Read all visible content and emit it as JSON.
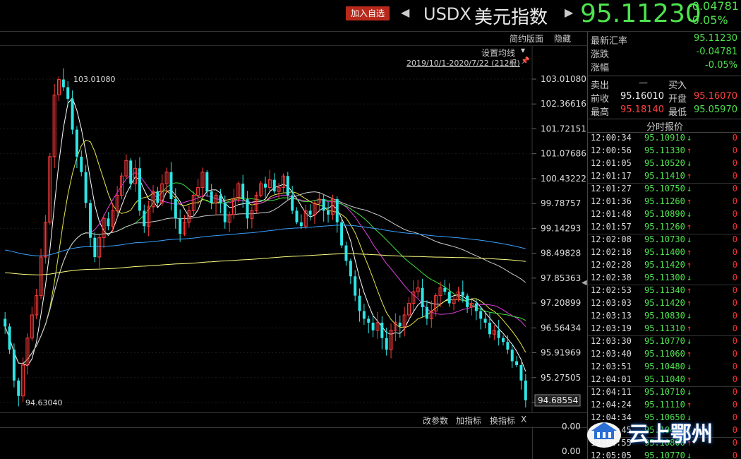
{
  "header": {
    "add_button": "加入自选",
    "symbol": "USDX",
    "name": "美元指数",
    "price": "95.11230",
    "change": "-0.04781",
    "change_pct": "-0.05%"
  },
  "chart_toolbar": {
    "contract_page": "简约版面",
    "hide": "隐藏",
    "ma_settings": "设置均线",
    "date_range": "2019/10/1-2020/7/22 (212根)"
  },
  "sub_toolbar": {
    "change_params": "改参数",
    "add_indicator": "加指标",
    "switch_indicator": "换指标",
    "close": "X"
  },
  "sub_axis": {
    "upper": "0.00",
    "lower": "0.00"
  },
  "quote": {
    "latest_label": "最新汇率",
    "latest": "95.11230",
    "change_label": "涨跌",
    "change": "-0.04781",
    "pct_label": "涨幅",
    "pct": "-0.05%",
    "sell_label": "卖出",
    "sell": "—",
    "buy_label": "买入",
    "buy": "—",
    "prev_label": "前收",
    "prev": "95.16010",
    "open_label": "开盘",
    "open": "95.16070",
    "high_label": "最高",
    "high": "95.18140",
    "low_label": "最低",
    "low": "95.05970",
    "ticks_title": "分时报价"
  },
  "ticks": [
    {
      "time": "12:00:34",
      "price": "95.10910",
      "dir": "down",
      "vol": "0"
    },
    {
      "time": "12:00:56",
      "price": "95.11330",
      "dir": "up",
      "vol": "0"
    },
    {
      "time": "12:01:05",
      "price": "95.10520",
      "dir": "down",
      "vol": "0"
    },
    {
      "time": "12:01:17",
      "price": "95.11410",
      "dir": "up",
      "vol": "0"
    },
    {
      "time": "12:01:27",
      "price": "95.10750",
      "dir": "down",
      "vol": "0"
    },
    {
      "time": "12:01:36",
      "price": "95.11260",
      "dir": "up",
      "vol": "0"
    },
    {
      "time": "12:01:48",
      "price": "95.10890",
      "dir": "down",
      "vol": "0"
    },
    {
      "time": "12:01:57",
      "price": "95.11260",
      "dir": "up",
      "vol": "0"
    },
    {
      "time": "12:02:08",
      "price": "95.10730",
      "dir": "down",
      "vol": "0"
    },
    {
      "time": "12:02:18",
      "price": "95.11400",
      "dir": "up",
      "vol": "0"
    },
    {
      "time": "12:02:28",
      "price": "95.11420",
      "dir": "up",
      "vol": "0"
    },
    {
      "time": "12:02:38",
      "price": "95.11300",
      "dir": "down",
      "vol": "0"
    },
    {
      "time": "12:02:53",
      "price": "95.11340",
      "dir": "up",
      "vol": "0"
    },
    {
      "time": "12:03:03",
      "price": "95.11420",
      "dir": "up",
      "vol": "0"
    },
    {
      "time": "12:03:13",
      "price": "95.10830",
      "dir": "down",
      "vol": "0"
    },
    {
      "time": "12:03:19",
      "price": "95.11310",
      "dir": "up",
      "vol": "0"
    },
    {
      "time": "12:03:30",
      "price": "95.10770",
      "dir": "down",
      "vol": "0"
    },
    {
      "time": "12:03:40",
      "price": "95.11060",
      "dir": "up",
      "vol": "0"
    },
    {
      "time": "12:03:51",
      "price": "95.10480",
      "dir": "down",
      "vol": "0"
    },
    {
      "time": "12:04:01",
      "price": "95.11040",
      "dir": "up",
      "vol": "0"
    },
    {
      "time": "12:04:11",
      "price": "95.10710",
      "dir": "down",
      "vol": "0"
    },
    {
      "time": "12:04:24",
      "price": "95.11110",
      "dir": "up",
      "vol": "0"
    },
    {
      "time": "12:04:34",
      "price": "95.10650",
      "dir": "down",
      "vol": "0"
    },
    {
      "time": "12:04:45",
      "price": "95.10490",
      "dir": "down",
      "vol": "0"
    },
    {
      "time": "12:04:55",
      "price": "95.10800",
      "dir": "up",
      "vol": "0"
    },
    {
      "time": "12:05:05",
      "price": "95.10770",
      "dir": "down",
      "vol": "0"
    }
  ],
  "colors": {
    "up": "#ff3b3b",
    "down": "#2ee6e6",
    "price_green": "#4fe34f",
    "accent_red": "#b8291c"
  },
  "watermark": "云上鄂州",
  "chart_data": {
    "type": "candlestick",
    "ylim": [
      94.6304,
      103.0108
    ],
    "y_ticks": [
      "103.01080",
      "102.36616",
      "101.72151",
      "101.07686",
      "100.43222",
      "99.78757",
      "99.14293",
      "98.49828",
      "97.85363",
      "97.20899",
      "96.56434",
      "95.91969",
      "95.27505",
      "94.63040"
    ],
    "last_price_label": "94.68554",
    "annotations": [
      {
        "label": "103.01080",
        "type": "high"
      },
      {
        "label": "94.63040",
        "type": "low"
      }
    ],
    "closes": [
      96.6,
      96.0,
      95.2,
      94.8,
      95.6,
      96.3,
      96.9,
      97.4,
      98.4,
      99.3,
      101.0,
      102.6,
      103.0,
      102.8,
      102.5,
      101.7,
      101.0,
      100.6,
      99.8,
      98.9,
      98.4,
      98.9,
      99.4,
      99.2,
      99.6,
      100.0,
      100.5,
      100.9,
      100.3,
      100.7,
      99.6,
      99.2,
      99.7,
      100.1,
      99.8,
      100.3,
      100.6,
      99.9,
      99.4,
      99.0,
      99.3,
      99.6,
      100.0,
      100.2,
      100.6,
      100.1,
      99.8,
      100.0,
      99.8,
      99.3,
      99.5,
      99.9,
      100.3,
      99.9,
      99.4,
      99.6,
      100.0,
      100.3,
      100.2,
      100.4,
      100.1,
      100.2,
      100.5,
      100.0,
      99.6,
      99.3,
      99.2,
      99.6,
      99.5,
      99.8,
      99.9,
      99.6,
      99.5,
      99.9,
      99.3,
      98.7,
      98.3,
      97.9,
      97.4,
      97.0,
      96.8,
      96.7,
      96.5,
      96.7,
      96.3,
      96.0,
      96.5,
      96.7,
      96.6,
      96.9,
      97.2,
      97.5,
      97.6,
      97.1,
      96.8,
      97.0,
      97.4,
      97.6,
      97.5,
      97.2,
      97.3,
      97.5,
      97.4,
      97.1,
      97.2,
      97.0,
      96.8,
      96.7,
      96.4,
      96.5,
      96.3,
      96.2,
      96.0,
      95.7,
      95.6,
      95.2,
      94.69
    ],
    "series": [
      {
        "name": "MA5",
        "color": "#ffffff"
      },
      {
        "name": "MA10",
        "color": "#e8e84a"
      },
      {
        "name": "MA20",
        "color": "#e040e0"
      },
      {
        "name": "MA30",
        "color": "#40e040"
      },
      {
        "name": "MA60",
        "color": "#cccccc"
      },
      {
        "name": "MA120",
        "color": "#3aa0ff"
      },
      {
        "name": "MA250",
        "color": "#ffff80"
      }
    ]
  }
}
